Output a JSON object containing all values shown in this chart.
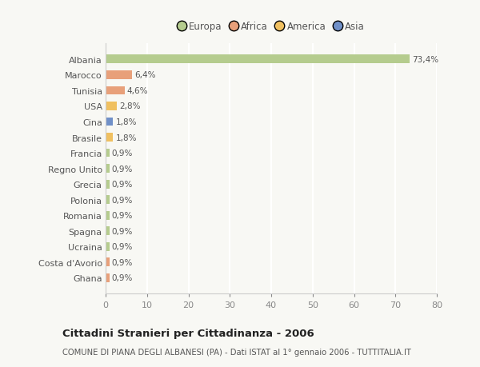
{
  "countries": [
    "Albania",
    "Marocco",
    "Tunisia",
    "USA",
    "Cina",
    "Brasile",
    "Francia",
    "Regno Unito",
    "Grecia",
    "Polonia",
    "Romania",
    "Spagna",
    "Ucraina",
    "Costa d'Avorio",
    "Ghana"
  ],
  "values": [
    73.4,
    6.4,
    4.6,
    2.8,
    1.8,
    1.8,
    0.9,
    0.9,
    0.9,
    0.9,
    0.9,
    0.9,
    0.9,
    0.9,
    0.9
  ],
  "labels": [
    "73,4%",
    "6,4%",
    "4,6%",
    "2,8%",
    "1,8%",
    "1,8%",
    "0,9%",
    "0,9%",
    "0,9%",
    "0,9%",
    "0,9%",
    "0,9%",
    "0,9%",
    "0,9%",
    "0,9%"
  ],
  "colors": [
    "#b5cc8e",
    "#e8a07a",
    "#e8a07a",
    "#f0c060",
    "#7090c8",
    "#f0c060",
    "#b5cc8e",
    "#b5cc8e",
    "#b5cc8e",
    "#b5cc8e",
    "#b5cc8e",
    "#b5cc8e",
    "#b5cc8e",
    "#e8a07a",
    "#e8a07a"
  ],
  "legend_names": [
    "Europa",
    "Africa",
    "America",
    "Asia"
  ],
  "legend_colors": [
    "#b5cc8e",
    "#e8a07a",
    "#f0c060",
    "#7090c8"
  ],
  "xlim": [
    0,
    80
  ],
  "xticks": [
    0,
    10,
    20,
    30,
    40,
    50,
    60,
    70,
    80
  ],
  "title": "Cittadini Stranieri per Cittadinanza - 2006",
  "subtitle": "COMUNE DI PIANA DEGLI ALBANESI (PA) - Dati ISTAT al 1° gennaio 2006 - TUTTITALIA.IT",
  "background_color": "#f8f8f4",
  "grid_color": "#ffffff",
  "bar_height": 0.55
}
